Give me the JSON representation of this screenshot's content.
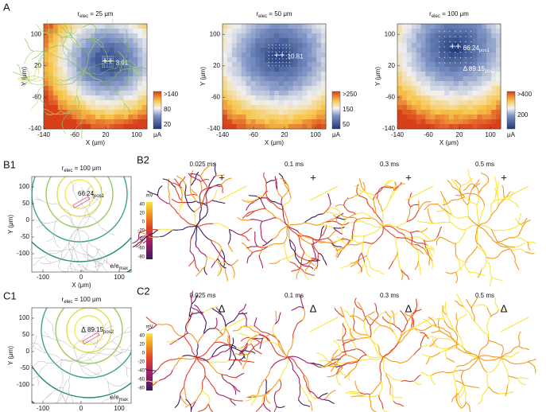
{
  "A": {
    "label": "A",
    "x_label": "X (μm)",
    "y_label": "Y (μm)",
    "unit": "μA",
    "xticks": [
      -140,
      -60,
      20,
      100
    ],
    "yticks": [
      100,
      20,
      -60,
      -140
    ],
    "panels": [
      {
        "title": "r",
        "title_sub": "elec",
        "title_rest": " = 25 μm",
        "annotations": [
          {
            "text": "3.01"
          }
        ],
        "colorbar_labels": [
          ">140",
          "80",
          "20"
        ]
      },
      {
        "title": "r",
        "title_sub": "elec",
        "title_rest": " = 50 μm",
        "annotations": [
          {
            "text": "10.81"
          }
        ],
        "colorbar_labels": [
          ">250",
          "150",
          "50"
        ]
      },
      {
        "title": "r",
        "title_sub": "elec",
        "title_rest": " = 100 μm",
        "annotations": [
          {
            "text": "66.24",
            "sub": "pos1"
          },
          {
            "text": "Δ 89.15",
            "sub": "pos2"
          }
        ],
        "colorbar_labels": [
          ">400",
          "200"
        ]
      }
    ]
  },
  "B1": {
    "label": "B1",
    "title": "r",
    "title_sub": "elec",
    "title_rest": " = 100 μm",
    "annotation": {
      "text": "66.24",
      "sub": "pos1"
    },
    "x_label": "X (μm)",
    "y_label": "Y (μm)",
    "xticks": [
      -100,
      0,
      100
    ],
    "yticks": [
      100,
      50,
      0,
      -50,
      -100
    ],
    "legend": "e/e",
    "legend_sub": "max"
  },
  "B2": {
    "label": "B2",
    "times": [
      "0.025 ms",
      "0.1 ms",
      "0.3 ms",
      "0.5 ms"
    ],
    "marker": "+",
    "colorbar_unit": "mV",
    "colorbar_ticks": [
      40,
      20,
      0,
      -20,
      -40,
      -60,
      -80
    ]
  },
  "C1": {
    "label": "C1",
    "title": "r",
    "title_sub": "elec",
    "title_rest": " = 100 μm",
    "annotation": {
      "text": "89.15",
      "sub": "pos2",
      "marker": "Δ"
    },
    "x_label": "X (μm)",
    "y_label": "Y (μm)",
    "xticks": [
      -100,
      0,
      100
    ],
    "yticks": [
      100,
      50,
      0,
      -50,
      -100
    ],
    "legend": "e/e",
    "legend_sub": "max"
  },
  "C2": {
    "label": "C2",
    "times": [
      "0.025 ms",
      "0.1 ms",
      "0.3 ms",
      "0.5 ms"
    ],
    "marker": "Δ",
    "colorbar_unit": "mV",
    "colorbar_ticks": [
      40,
      20,
      0,
      -20,
      -40,
      -60,
      -80
    ]
  }
}
